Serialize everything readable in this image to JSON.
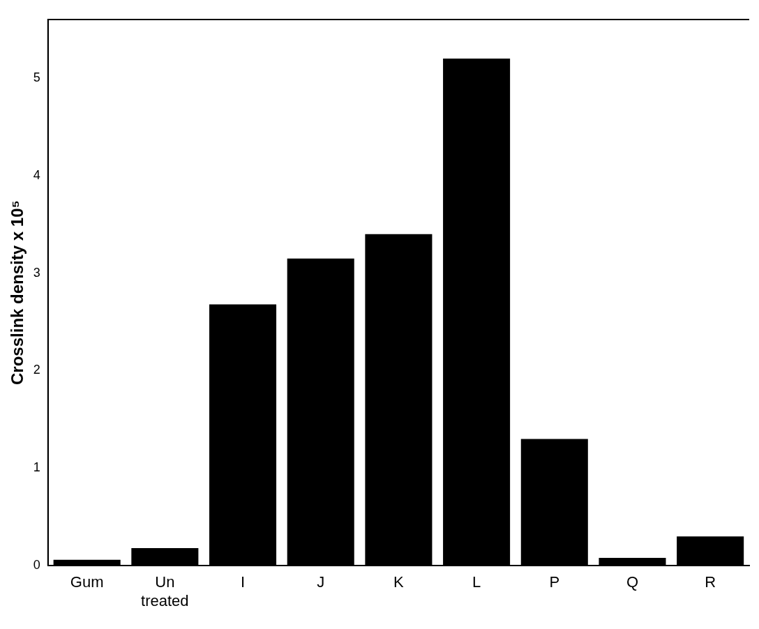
{
  "chart_data": {
    "type": "bar",
    "ylabel": "Crosslink density x 10⁵",
    "categories": [
      "Gum",
      "Un treated",
      "I",
      "J",
      "K",
      "L",
      "P",
      "Q",
      "R"
    ],
    "values": [
      0.06,
      0.18,
      2.68,
      3.15,
      3.4,
      5.2,
      1.3,
      0.08,
      0.3
    ],
    "color": "#000000",
    "ylim": [
      0,
      5.6
    ],
    "yticks": [
      0,
      1,
      2,
      3,
      4,
      5
    ],
    "grid": false,
    "legend": false
  }
}
